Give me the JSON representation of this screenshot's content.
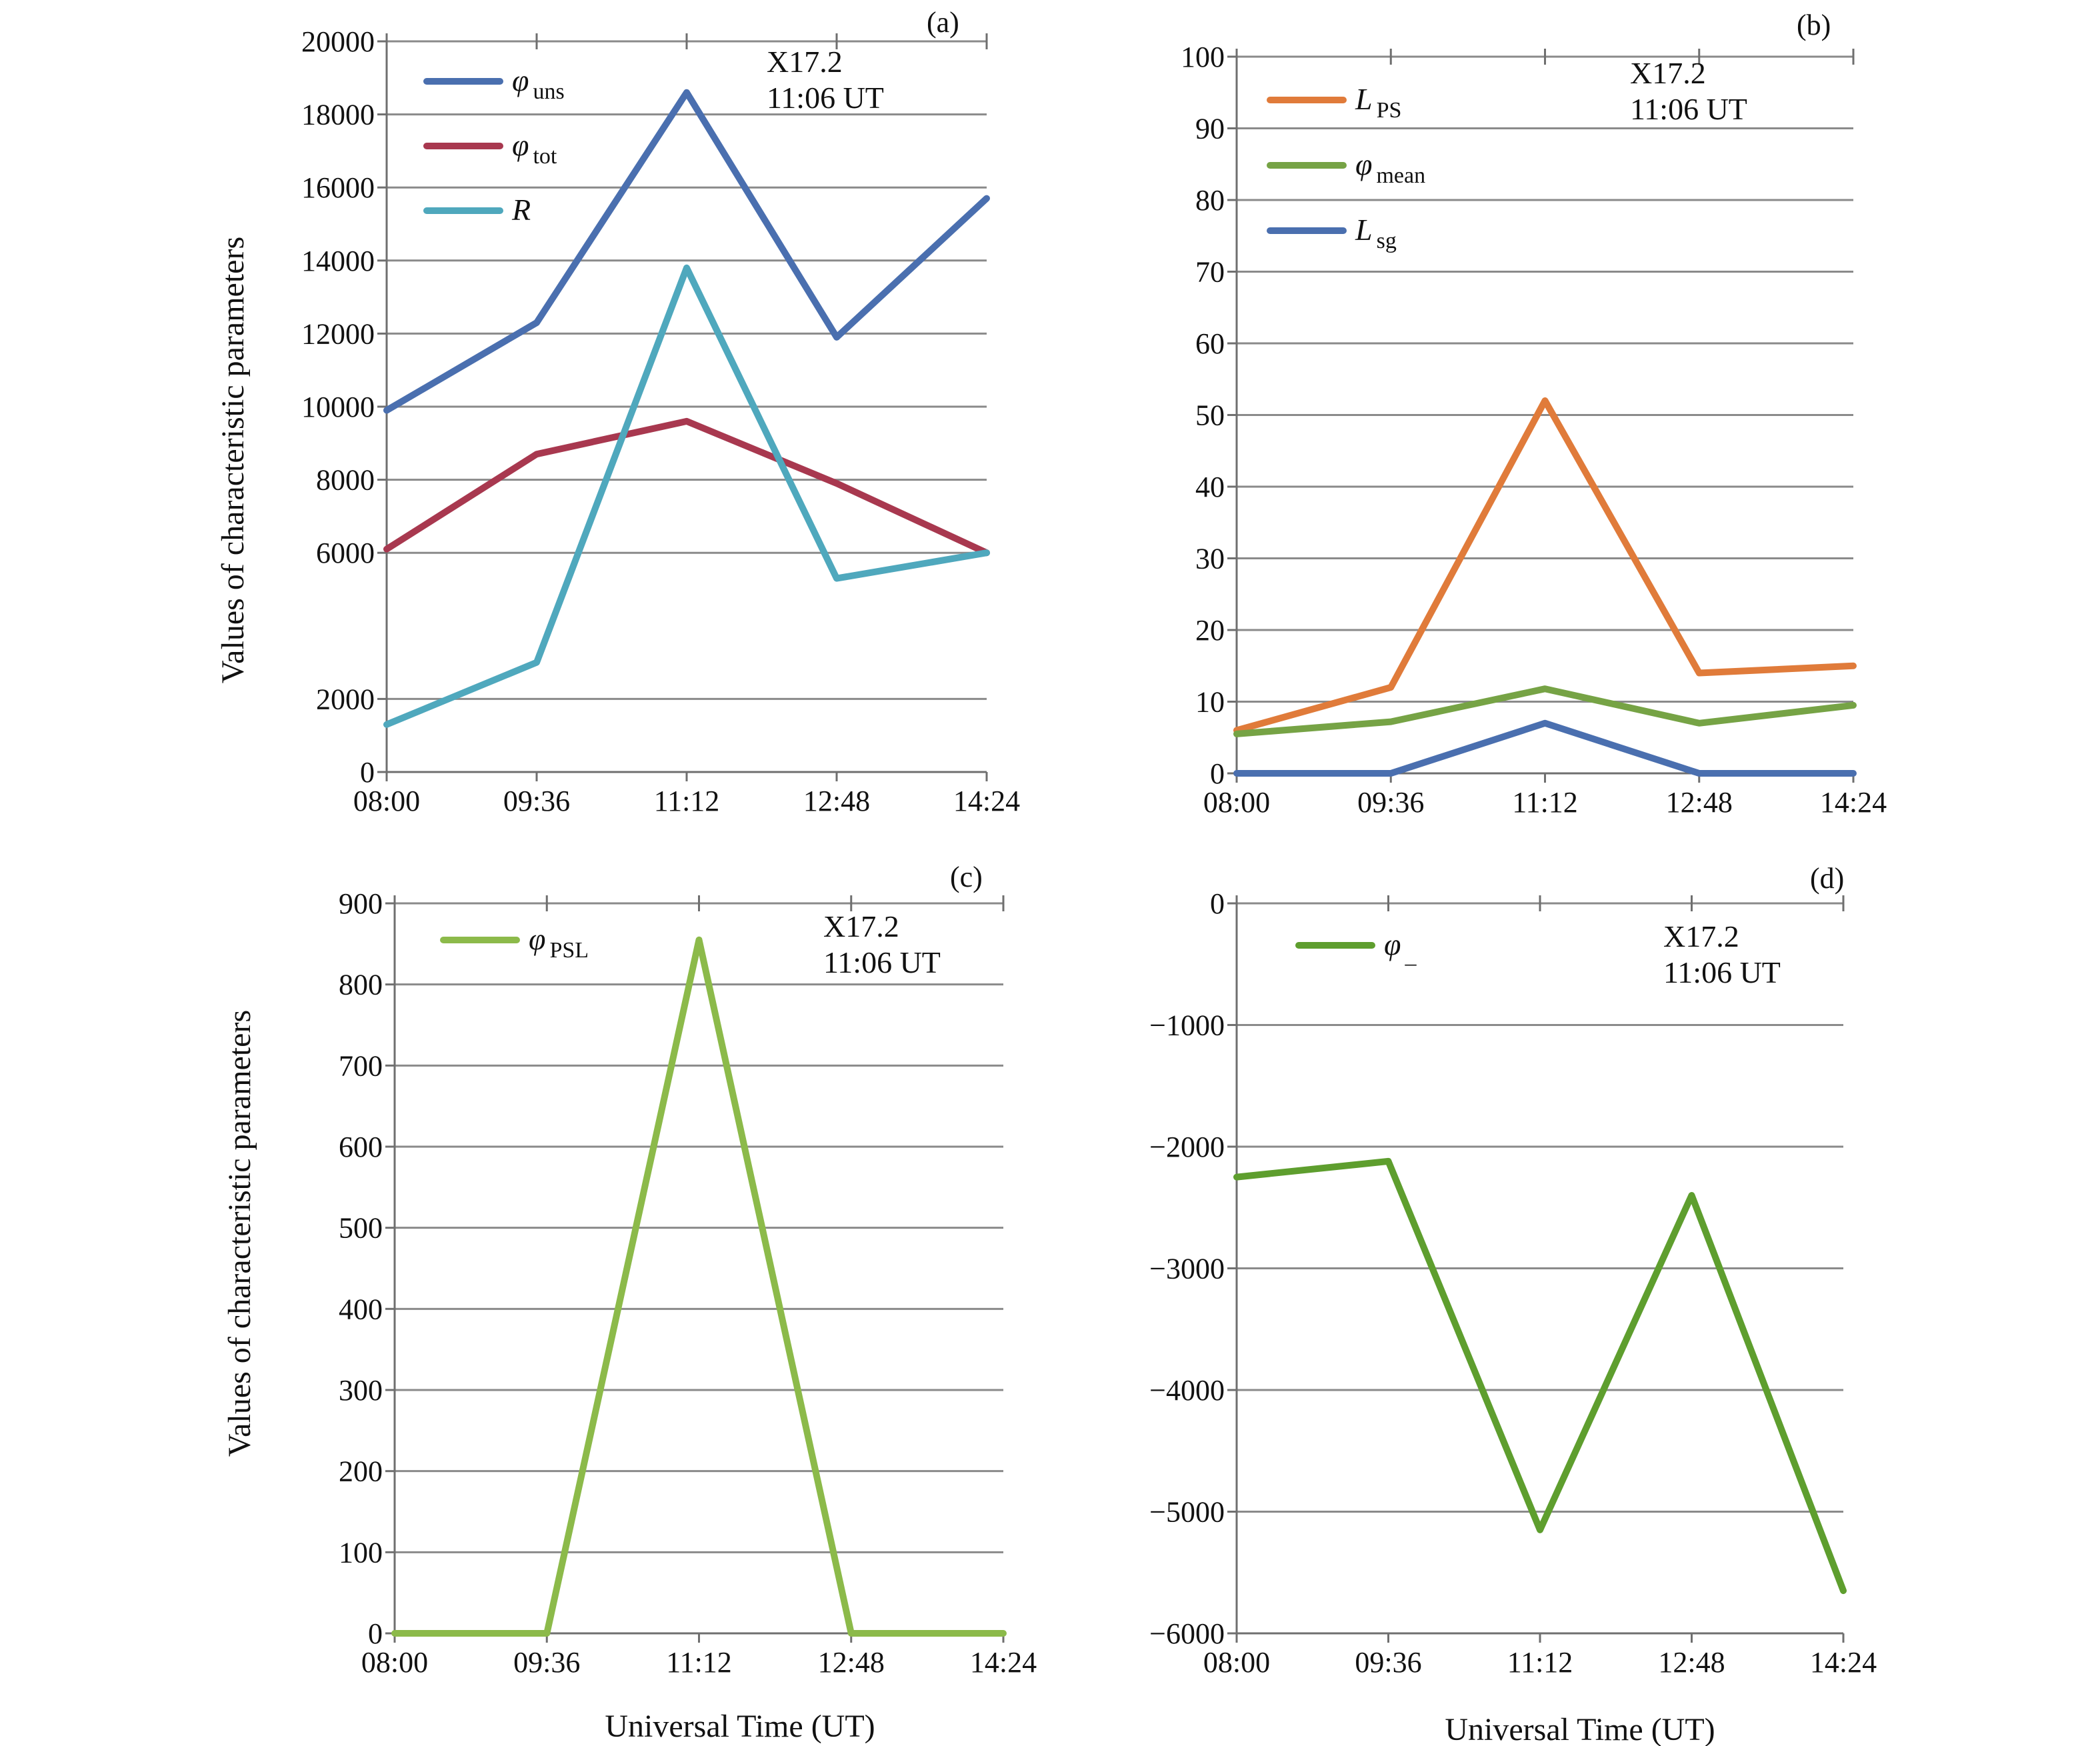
{
  "axis_titles": {
    "y_top": "Values of characteristic parameters",
    "y_bottom": "Values of characteristic parameters",
    "x_left": "Universal Time (UT)",
    "x_right": "Universal Time (UT)"
  },
  "chart_data": [
    {
      "panel": "(a)",
      "type": "line",
      "x": [
        "08:00",
        "09:36",
        "11:12",
        "12:48",
        "14:24"
      ],
      "ylim": [
        0,
        20000
      ],
      "yticks": [
        0,
        2000,
        6000,
        8000,
        10000,
        12000,
        14000,
        16000,
        18000,
        20000
      ],
      "grid": true,
      "legend_position": "top-left",
      "annotation": [
        "X17.2",
        "11:06 UT"
      ],
      "series": [
        {
          "name": "φ",
          "name_sub": "uns",
          "color": "#4a6faf",
          "values": [
            9900,
            12300,
            18600,
            11900,
            15700
          ]
        },
        {
          "name": "φ",
          "name_sub": "tot",
          "color": "#a8384f",
          "values": [
            6100,
            8700,
            9600,
            7900,
            6000
          ]
        },
        {
          "name": "R",
          "name_sub": "",
          "color": "#4fa8bd",
          "values": [
            1300,
            3000,
            13800,
            5300,
            6000
          ]
        }
      ]
    },
    {
      "panel": "(b)",
      "type": "line",
      "x": [
        "08:00",
        "09:36",
        "11:12",
        "12:48",
        "14:24"
      ],
      "ylim": [
        0,
        100
      ],
      "yticks": [
        0,
        10,
        20,
        30,
        40,
        50,
        60,
        70,
        80,
        90,
        100
      ],
      "grid": true,
      "legend_position": "top-left",
      "annotation": [
        "X17.2",
        "11:06 UT"
      ],
      "series": [
        {
          "name": "L",
          "name_sub": "PS",
          "color": "#e07b3a",
          "values": [
            6,
            12,
            52,
            14,
            15
          ]
        },
        {
          "name": "φ",
          "name_sub": "mean",
          "color": "#76a345",
          "values": [
            5.5,
            7.2,
            11.8,
            7,
            9.5
          ]
        },
        {
          "name": "L",
          "name_sub": "sg",
          "color": "#4a6faf",
          "values": [
            0,
            0,
            7,
            0,
            0
          ]
        }
      ]
    },
    {
      "panel": "(c)",
      "type": "line",
      "x": [
        "08:00",
        "09:36",
        "11:12",
        "12:48",
        "14:24"
      ],
      "ylim": [
        0,
        900
      ],
      "yticks": [
        0,
        100,
        200,
        300,
        400,
        500,
        600,
        700,
        800,
        900
      ],
      "grid": true,
      "legend_position": "top-left",
      "annotation": [
        "X17.2",
        "11:06 UT"
      ],
      "series": [
        {
          "name": "φ",
          "name_sub": "PSL",
          "color": "#8cba4a",
          "values": [
            0,
            0,
            855,
            0,
            0
          ]
        }
      ]
    },
    {
      "panel": "(d)",
      "type": "line",
      "x": [
        "08:00",
        "09:36",
        "11:12",
        "12:48",
        "14:24"
      ],
      "ylim": [
        -6000,
        0
      ],
      "yticks": [
        0,
        -1000,
        -2000,
        -3000,
        -4000,
        -5000,
        -6000
      ],
      "grid": true,
      "legend_position": "top-left",
      "annotation": [
        "X17.2",
        "11:06 UT"
      ],
      "series": [
        {
          "name": "φ",
          "name_sub": "_",
          "color": "#5e9e2e",
          "values": [
            -2250,
            -2120,
            -5150,
            -2400,
            -5650
          ]
        }
      ]
    }
  ]
}
